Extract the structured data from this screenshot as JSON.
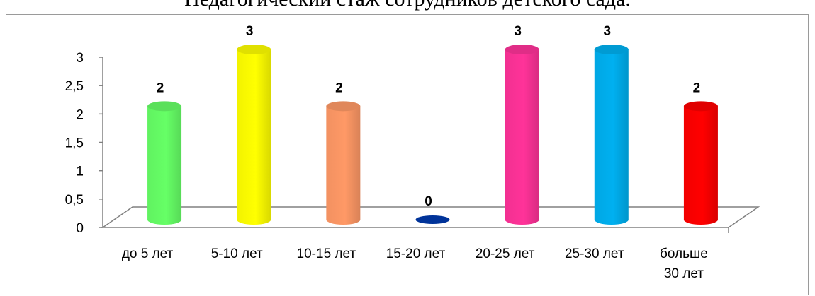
{
  "chart_data": {
    "type": "bar",
    "title": "Педагогический стаж сотрудников детского сада.",
    "categories": [
      [
        "до 5 лет"
      ],
      [
        "5-10 лет"
      ],
      [
        "10-15 лет"
      ],
      [
        "15-20 лет"
      ],
      [
        "20-25 лет"
      ],
      [
        "25-30 лет"
      ],
      [
        "больше",
        "30 лет"
      ]
    ],
    "values": [
      2,
      3,
      2,
      0,
      3,
      3,
      2
    ],
    "data_labels": [
      "2",
      "3",
      "2",
      "0",
      "3",
      "3",
      "2"
    ],
    "y_ticks": [
      "0",
      "0,5",
      "1",
      "1,5",
      "2",
      "2,5",
      "3"
    ],
    "ylim": [
      0,
      3
    ],
    "xlabel": "",
    "ylabel": "",
    "grid": false,
    "legend": "none",
    "colors": [
      "#66ff66",
      "#ffff00",
      "#ff9966",
      "#003399",
      "#ff3399",
      "#00b0f0",
      "#ff0000"
    ]
  }
}
